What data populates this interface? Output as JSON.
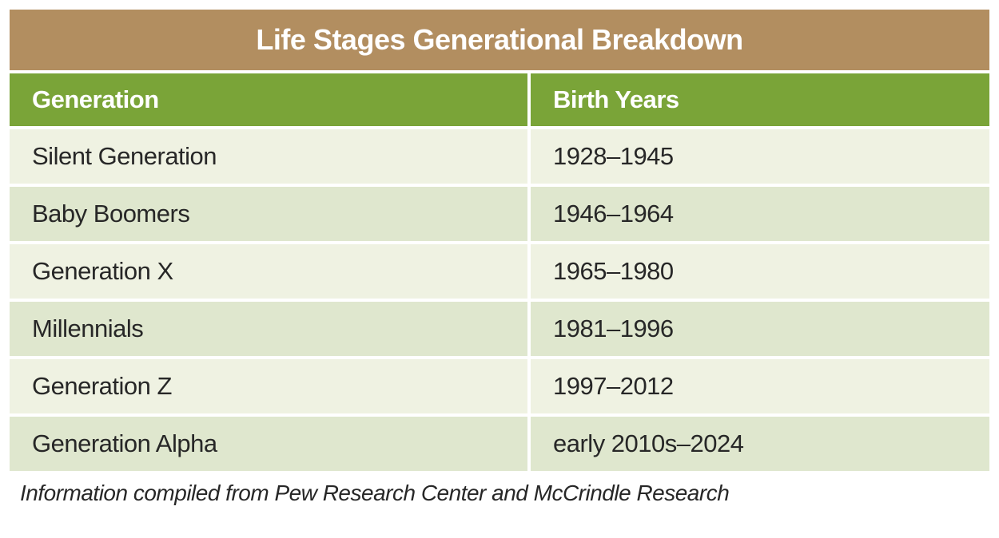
{
  "colors": {
    "background": "#ffffff",
    "title_bar": "#b28e60",
    "header_row": "#7aa438",
    "row_light": "#eff2e2",
    "row_dark": "#dfe7ce",
    "title_text": "#ffffff",
    "body_text": "#272727"
  },
  "table": {
    "title": "Life Stages Generational Breakdown",
    "columns": [
      "Generation",
      "Birth Years"
    ],
    "rows": [
      {
        "generation": "Silent Generation",
        "birth_years": "1928–1945"
      },
      {
        "generation": "Baby Boomers",
        "birth_years": "1946–1964"
      },
      {
        "generation": "Generation X",
        "birth_years": "1965–1980"
      },
      {
        "generation": "Millennials",
        "birth_years": "1981–1996"
      },
      {
        "generation": "Generation Z",
        "birth_years": "1997–2012"
      },
      {
        "generation": "Generation Alpha",
        "birth_years": "early 2010s–2024"
      }
    ]
  },
  "footer": {
    "text": "Information compiled from Pew Research Center and McCrindle Research"
  },
  "chart_data": {
    "type": "table",
    "title": "Life Stages Generational Breakdown",
    "columns": [
      "Generation",
      "Birth Years"
    ],
    "rows": [
      [
        "Silent Generation",
        "1928–1945"
      ],
      [
        "Baby Boomers",
        "1946–1964"
      ],
      [
        "Generation X",
        "1965–1980"
      ],
      [
        "Millennials",
        "1981–1996"
      ],
      [
        "Generation Z",
        "1997–2012"
      ],
      [
        "Generation Alpha",
        "early 2010s–2024"
      ]
    ],
    "source_note": "Information compiled from Pew Research Center and McCrindle Research"
  }
}
